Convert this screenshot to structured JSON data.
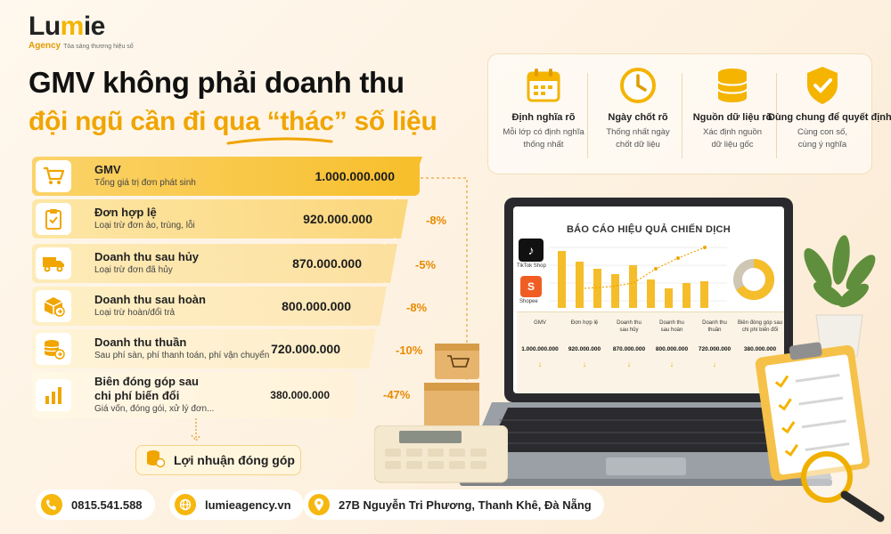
{
  "brand": {
    "name_prefix": "Lu",
    "name_mid": "m",
    "name_suffix": "ie",
    "sub": "Agency",
    "tagline": "Tỏa sáng thương hiệu số"
  },
  "headline": {
    "line1": "GMV không phải doanh thu",
    "line2": "đội ngũ cần đi qua “thác” số liệu"
  },
  "funnel": [
    {
      "title": "GMV",
      "subtitle": "Tổng giá trị đơn phát sinh",
      "value": "1.000.000.000",
      "change": "",
      "icon": "shopping-cart-icon"
    },
    {
      "title": "Đơn hợp lệ",
      "subtitle": "Loại trừ đơn ảo, trùng, lỗi",
      "value": "920.000.000",
      "change": "-8%",
      "icon": "clipboard-check-icon"
    },
    {
      "title": "Doanh thu sau hủy",
      "subtitle": "Loại trừ đơn đã hủy",
      "value": "870.000.000",
      "change": "-5%",
      "icon": "delivery-truck-icon"
    },
    {
      "title": "Doanh thu sau hoàn",
      "subtitle": "Loại trừ hoàn/đổi trả",
      "value": "800.000.000",
      "change": "-8%",
      "icon": "return-box-icon"
    },
    {
      "title": "Doanh thu thuần",
      "subtitle": "Sau phí sàn, phí thanh toán, phí vận chuyển",
      "value": "720.000.000",
      "change": "-10%",
      "icon": "coin-stack-icon"
    },
    {
      "title": "Biên đóng góp sau",
      "title2": "chi phí biến đổi",
      "subtitle": "Giá vốn, đóng gói, xử lý đơn...",
      "value": "380.000.000",
      "change": "-47%",
      "icon": "bar-chart-icon"
    }
  ],
  "result": {
    "label": "Lợi nhuận đóng góp",
    "icon": "coin-stack-icon"
  },
  "principles": [
    {
      "title": "Định nghĩa rõ",
      "desc1": "Mỗi lớp có định nghĩa",
      "desc2": "thống nhất",
      "icon": "calendar-icon"
    },
    {
      "title": "Ngày chốt rõ",
      "desc1": "Thống nhất ngày",
      "desc2": "chốt dữ liệu",
      "icon": "clock-icon"
    },
    {
      "title": "Nguồn dữ liệu rõ",
      "desc1": "Xác định nguồn",
      "desc2": "dữ liệu gốc",
      "icon": "database-icon"
    },
    {
      "title": "Dùng chung để quyết định",
      "desc1": "Cùng con số,",
      "desc2": "cùng ý nghĩa",
      "icon": "shield-check-icon"
    }
  ],
  "report": {
    "title": "BÁO CÁO HIỆU QUẢ CHIẾN DỊCH",
    "platform1": "TikTok Shop",
    "platform2": "Shopee",
    "platform2_mark": "S",
    "columns": [
      {
        "h1": "GMV",
        "h2": "",
        "value": "1.000.000.000"
      },
      {
        "h1": "Đơn hợp lệ",
        "h2": "",
        "value": "920.000.000"
      },
      {
        "h1": "Doanh thu",
        "h2": "sau hủy",
        "value": "870.000.000"
      },
      {
        "h1": "Doanh thu",
        "h2": "sau hoàn",
        "value": "800.000.000"
      },
      {
        "h1": "Doanh thu",
        "h2": "thuần",
        "value": "720.000.000"
      },
      {
        "h1": "Biên đóng góp sau",
        "h2": "chi phí biến đổi",
        "value": "380.000.000"
      }
    ],
    "arrow": "↓"
  },
  "contact": {
    "phone": "0815.541.588",
    "website": "lumieagency.vn",
    "address": "27B Nguyễn Tri Phương, Thanh Khê, Đà Nẵng"
  },
  "colors": {
    "accent": "#f4b400",
    "accent_dark": "#e88a00",
    "bg": "#fdf3e4"
  }
}
